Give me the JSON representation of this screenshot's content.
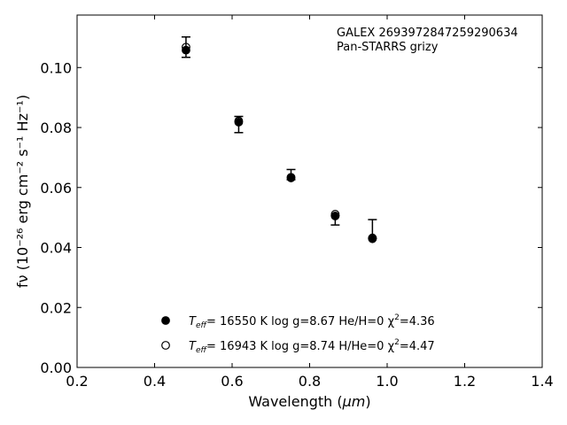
{
  "chart_data": {
    "type": "scatter",
    "xlabel_prefix": "Wavelength (",
    "xlabel_unit": "μm",
    "xlabel_suffix": ")",
    "ylabel": "fν (10⁻²⁶ erg cm⁻² s⁻¹ Hz⁻¹)",
    "xlim": [
      0.2,
      1.4
    ],
    "ylim": [
      0.0,
      0.1175
    ],
    "x_ticks": [
      0.2,
      0.4,
      0.6,
      0.8,
      1.0,
      1.2,
      1.4
    ],
    "x_tick_labels": [
      "0.2",
      "0.4",
      "0.6",
      "0.8",
      "1.0",
      "1.2",
      "1.4"
    ],
    "y_ticks": [
      0.0,
      0.02,
      0.04,
      0.06,
      0.08,
      0.1
    ],
    "y_tick_labels": [
      "0.00",
      "0.02",
      "0.04",
      "0.06",
      "0.08",
      "0.10"
    ],
    "grid": false,
    "annotation_lines": [
      "GALEX 2693972847259290634",
      "Pan-STARRS grizy"
    ],
    "observed": {
      "x": [
        0.481,
        0.617,
        0.752,
        0.866,
        0.962
      ],
      "y": [
        0.1068,
        0.081,
        0.0633,
        0.0506,
        0.0434
      ],
      "yerr_low": [
        0.0034,
        0.0027,
        0.0007,
        0.0031,
        0.0004
      ],
      "yerr_high": [
        0.0034,
        0.0027,
        0.0027,
        0.0,
        0.0059
      ]
    },
    "series": [
      {
        "name": "Teff= 16550 K  log g=8.67  He/H=0  χ²=4.36",
        "marker": "filled",
        "x": [
          0.481,
          0.617,
          0.752,
          0.866,
          0.962
        ],
        "y": [
          0.1058,
          0.0818,
          0.0632,
          0.0505,
          0.0429
        ]
      },
      {
        "name": "Teff= 16943 K  log g=8.74  H/He=0  χ²=4.47",
        "marker": "open",
        "x": [
          0.481,
          0.617,
          0.752,
          0.866,
          0.962
        ],
        "y": [
          0.1068,
          0.0822,
          0.0634,
          0.0511,
          0.0432
        ]
      }
    ],
    "legend": [
      {
        "pre": "T",
        "sub": "eff",
        "post": "= 16550 K  log g=8.67  He/H=0  χ",
        "sup": "2",
        "end": "=4.36"
      },
      {
        "pre": "T",
        "sub": "eff",
        "post": "= 16943 K  log g=8.74  H/He=0  χ",
        "sup": "2",
        "end": "=4.47"
      }
    ],
    "legend_position": "lower-center"
  }
}
